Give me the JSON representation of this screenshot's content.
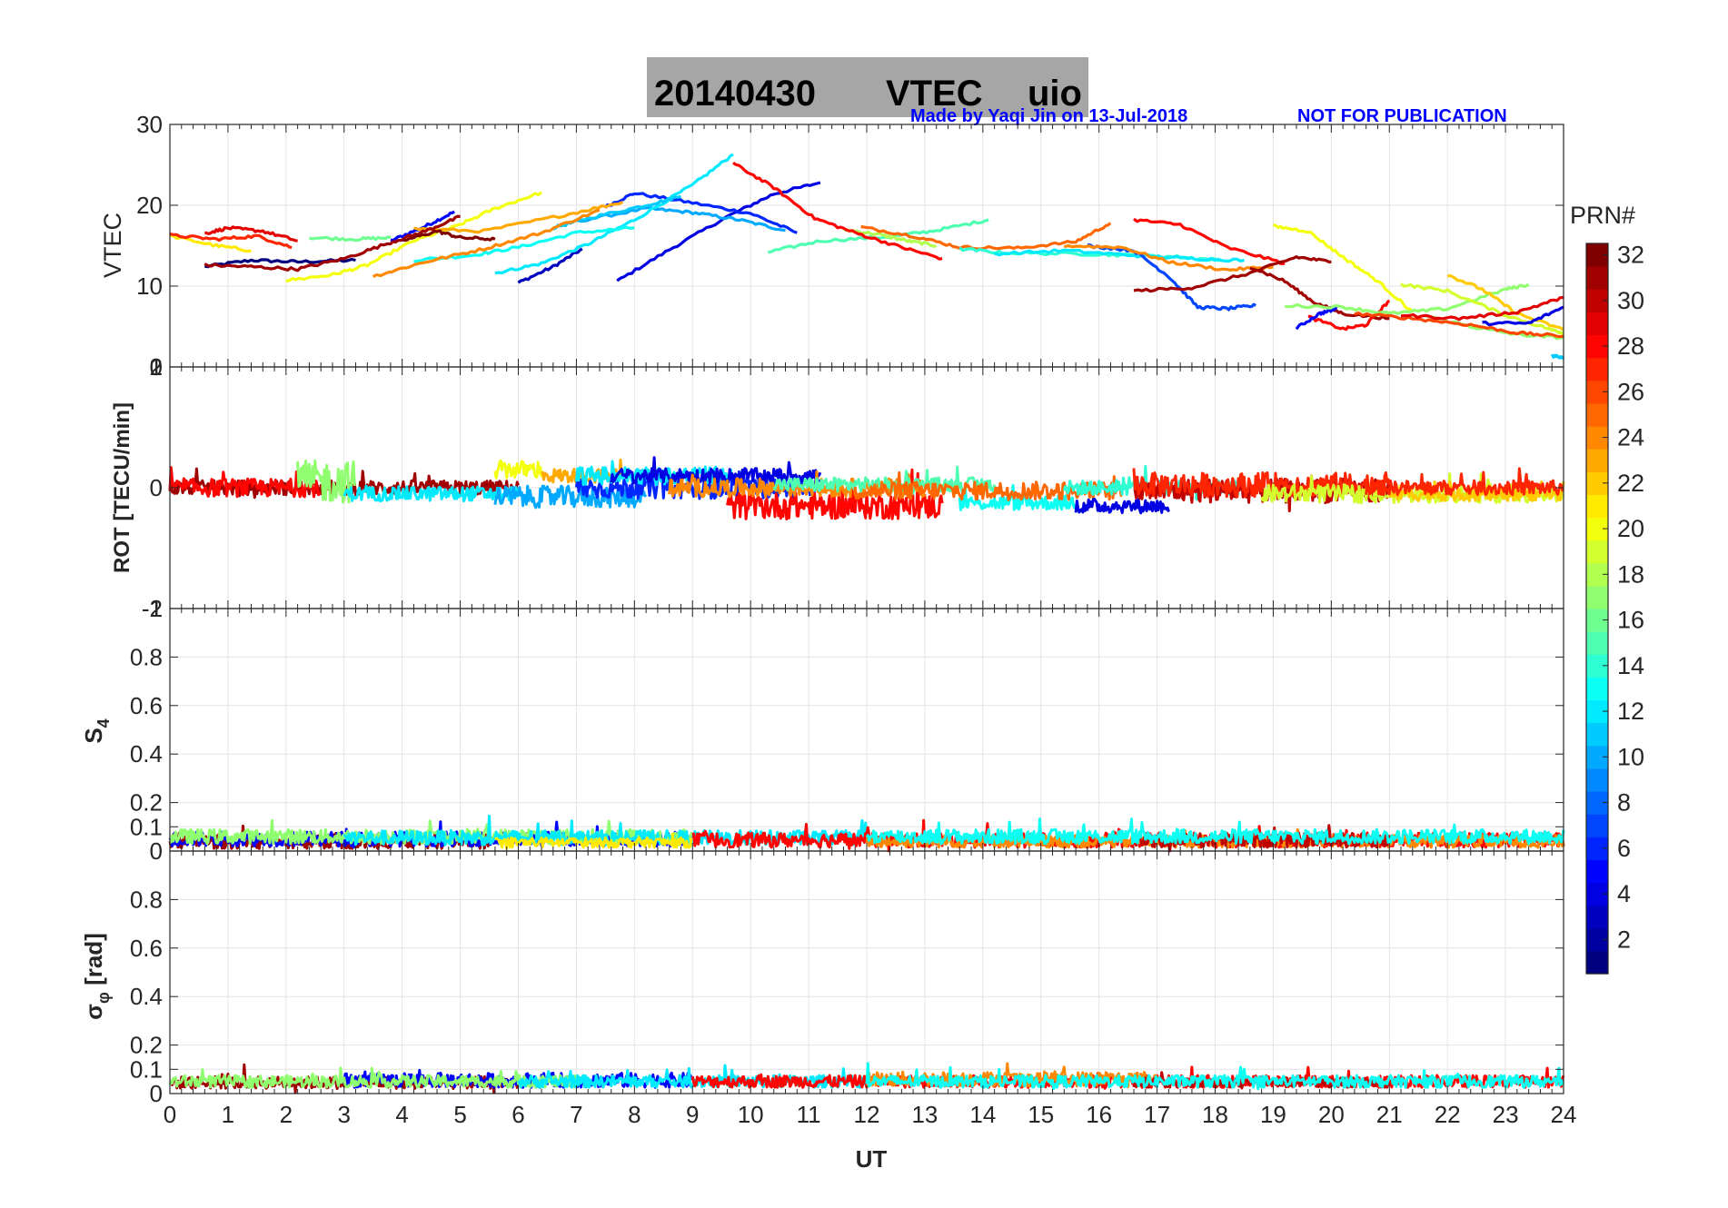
{
  "title": {
    "date": "20140430",
    "main": "VTEC",
    "station": "uio",
    "credit": "Made by Yaqi Jin on 13-Jul-2018",
    "notice": "NOT FOR PUBLICATION",
    "background_color": "#a6a6a6",
    "credit_color": "#0000ff"
  },
  "chart_data": [
    {
      "type": "line",
      "panel": "vtec",
      "ylabel": "VTEC",
      "xlabel": "",
      "xlim": [
        0,
        24
      ],
      "ylim": [
        0,
        30
      ],
      "yticks": [
        0,
        10,
        20,
        30
      ],
      "ytick_labels": [
        "0",
        "10",
        "20",
        "30"
      ],
      "grid": true,
      "series": [
        {
          "prn": 1,
          "x": [
            0.6,
            1.4,
            2.2,
            3.2
          ],
          "y": [
            12.4,
            13.2,
            13.0,
            13.2
          ]
        },
        {
          "prn": 5,
          "x": [
            3.8,
            4.4,
            4.9
          ],
          "y": [
            15.6,
            17.4,
            19.2
          ]
        },
        {
          "prn": 3,
          "x": [
            6.0,
            6.6,
            7.1
          ],
          "y": [
            10.4,
            12.4,
            14.6
          ]
        },
        {
          "prn": 4,
          "x": [
            7.7,
            8.6,
            9.6,
            10.4,
            11.2
          ],
          "y": [
            10.6,
            14.5,
            18.6,
            21.4,
            22.8
          ]
        },
        {
          "prn": 6,
          "x": [
            7.5,
            8.0,
            9.0,
            10.0,
            10.8
          ],
          "y": [
            19.8,
            21.5,
            20.3,
            19.0,
            16.6
          ]
        },
        {
          "prn": 10,
          "x": [
            7.0,
            8.2,
            9.0,
            9.8,
            10.6
          ],
          "y": [
            18.0,
            19.6,
            19.1,
            18.2,
            16.9
          ]
        },
        {
          "prn": 12,
          "x": [
            5.6,
            6.4,
            7.2,
            8.0,
            9.0,
            9.7
          ],
          "y": [
            11.6,
            12.8,
            15.2,
            18.2,
            22.5,
            26.3
          ]
        },
        {
          "prn": 11,
          "x": [
            6.6,
            7.2,
            8.2,
            8.8
          ],
          "y": [
            17.2,
            18.4,
            20.0,
            21.1
          ]
        },
        {
          "prn": 13,
          "x": [
            4.2,
            5.2,
            6.0,
            7.0,
            8.0
          ],
          "y": [
            13.2,
            13.8,
            14.8,
            16.6,
            17.2
          ]
        },
        {
          "prn": 15,
          "x": [
            10.3,
            11.2,
            12.4,
            13.2,
            14.1
          ],
          "y": [
            14.2,
            15.6,
            16.1,
            16.9,
            18.2
          ]
        },
        {
          "prn": 16,
          "x": [
            2.4,
            3.2,
            3.8
          ],
          "y": [
            16.0,
            15.8,
            16.0
          ]
        },
        {
          "prn": 18,
          "x": [
            11.6,
            12.2,
            12.7,
            13.2
          ],
          "y": [
            17.0,
            16.4,
            15.6,
            15.0
          ]
        },
        {
          "prn": 20,
          "x": [
            2.0,
            2.8,
            3.4,
            4.2,
            4.9,
            5.6,
            6.4
          ],
          "y": [
            10.7,
            11.4,
            12.6,
            15.6,
            17.3,
            19.6,
            21.6
          ]
        },
        {
          "prn": 21,
          "x": [
            0.0,
            0.8,
            1.4
          ],
          "y": [
            16.2,
            15.0,
            14.4
          ]
        },
        {
          "prn": 23,
          "x": [
            4.2,
            5.4,
            6.8,
            7.8
          ],
          "y": [
            17.1,
            16.8,
            18.8,
            20.4
          ]
        },
        {
          "prn": 24,
          "x": [
            3.5,
            4.4,
            5.4,
            6.4,
            7.4
          ],
          "y": [
            11.2,
            13.0,
            14.6,
            16.6,
            19.4
          ]
        },
        {
          "prn": 25,
          "x": [
            11.9,
            12.8,
            13.6,
            14.6,
            15.6,
            16.2
          ],
          "y": [
            17.3,
            16.2,
            14.8,
            14.7,
            15.5,
            17.8
          ]
        },
        {
          "prn": 27,
          "x": [
            0.0,
            0.8,
            1.5,
            2.1
          ],
          "y": [
            16.3,
            15.8,
            16.2,
            14.8
          ]
        },
        {
          "prn": 29,
          "x": [
            0.6,
            1.0,
            1.6,
            2.2
          ],
          "y": [
            16.5,
            17.2,
            16.8,
            15.6
          ]
        },
        {
          "prn": 28,
          "x": [
            9.7,
            10.4,
            11.1,
            11.8,
            12.6,
            13.3
          ],
          "y": [
            25.2,
            22.2,
            18.4,
            16.6,
            14.8,
            13.4
          ]
        },
        {
          "prn": 31,
          "x": [
            0.6,
            1.4,
            2.2,
            3.0,
            3.8,
            4.4,
            5.0
          ],
          "y": [
            12.6,
            12.4,
            12.1,
            13.4,
            15.4,
            16.8,
            18.6
          ]
        },
        {
          "prn": 32,
          "x": [
            4.0,
            4.6,
            5.0,
            5.6
          ],
          "y": [
            15.6,
            16.8,
            16.0,
            15.8
          ]
        },
        {
          "prn": 14,
          "x": [
            13.6,
            14.4,
            15.6,
            16.6,
            17.4,
            18.1
          ],
          "y": [
            14.6,
            14.1,
            14.0,
            13.8,
            13.6,
            13.2
          ]
        },
        {
          "prn": 12,
          "x": [
            14.2,
            15.4,
            16.6,
            17.6,
            18.5
          ],
          "y": [
            14.0,
            14.4,
            13.8,
            13.4,
            13.2
          ]
        },
        {
          "prn": 7,
          "x": [
            15.8,
            16.6,
            17.2,
            17.7,
            18.2,
            18.7
          ],
          "y": [
            15.0,
            14.4,
            11.2,
            7.4,
            7.2,
            7.6
          ]
        },
        {
          "prn": 24,
          "x": [
            15.4,
            16.4,
            17.2,
            18.2,
            19.0
          ],
          "y": [
            15.0,
            14.8,
            13.0,
            12.0,
            12.4
          ]
        },
        {
          "prn": 28,
          "x": [
            16.6,
            17.4,
            18.2,
            19.2
          ],
          "y": [
            18.2,
            17.6,
            14.8,
            12.8
          ]
        },
        {
          "prn": 31,
          "x": [
            16.6,
            17.6,
            18.6,
            19.4,
            20.0
          ],
          "y": [
            9.4,
            9.8,
            11.6,
            13.6,
            13.0
          ]
        },
        {
          "prn": 31,
          "x": [
            18.6,
            19.2,
            19.7,
            20.2,
            21.0
          ],
          "y": [
            12.4,
            10.6,
            8.0,
            6.6,
            6.0
          ]
        },
        {
          "prn": 20,
          "x": [
            19.0,
            19.6,
            20.2,
            20.8,
            21.4
          ],
          "y": [
            17.4,
            16.8,
            13.6,
            10.6,
            6.8
          ]
        },
        {
          "prn": 28,
          "x": [
            19.6,
            20.2,
            20.6,
            21.0
          ],
          "y": [
            6.2,
            4.7,
            5.2,
            8.2
          ]
        },
        {
          "prn": 5,
          "x": [
            19.4,
            19.8,
            20.1
          ],
          "y": [
            4.8,
            6.6,
            7.2
          ]
        },
        {
          "prn": 17,
          "x": [
            19.2,
            20.2,
            21.0,
            22.0,
            23.0,
            23.4
          ],
          "y": [
            7.6,
            7.4,
            6.6,
            7.2,
            9.6,
            10.2
          ]
        },
        {
          "prn": 19,
          "x": [
            21.2,
            22.0,
            23.0,
            23.8,
            24.0
          ],
          "y": [
            10.2,
            9.4,
            6.4,
            4.6,
            4.2
          ]
        },
        {
          "prn": 22,
          "x": [
            22.0,
            22.6,
            23.2,
            24.0
          ],
          "y": [
            11.4,
            9.6,
            6.6,
            4.6
          ]
        },
        {
          "prn": 17,
          "x": [
            21.6,
            22.4,
            23.2,
            24.0
          ],
          "y": [
            6.4,
            5.0,
            4.0,
            3.6
          ]
        },
        {
          "prn": 26,
          "x": [
            20.4,
            21.4,
            22.4,
            23.2,
            24.0
          ],
          "y": [
            6.6,
            6.0,
            5.2,
            4.2,
            3.8
          ]
        },
        {
          "prn": 29,
          "x": [
            21.2,
            22.2,
            23.2,
            24.0
          ],
          "y": [
            6.4,
            6.0,
            6.8,
            8.6
          ]
        },
        {
          "prn": 4,
          "x": [
            22.6,
            23.4,
            24.0
          ],
          "y": [
            5.4,
            5.4,
            7.4
          ]
        },
        {
          "prn": 11,
          "x": [
            23.8,
            24.0
          ],
          "y": [
            1.4,
            1.2
          ]
        }
      ]
    },
    {
      "type": "line",
      "panel": "rot",
      "ylabel": "ROT [TECU/min]",
      "xlabel": "",
      "xlim": [
        0,
        24
      ],
      "ylim": [
        -2,
        2
      ],
      "yticks": [
        -2,
        0,
        2
      ],
      "ytick_labels": [
        "-2",
        "0",
        "2"
      ],
      "yticks_overlap": [
        -1,
        1
      ],
      "ytick_labels_overlap": [
        "-1",
        "1"
      ],
      "grid": true,
      "series": [
        {
          "prn": 31,
          "x": [
            0.0,
            6.0
          ],
          "level": 0.0,
          "spread": 0.12
        },
        {
          "prn": 28,
          "x": [
            0.0,
            2.6
          ],
          "level": 0.0,
          "spread": 0.15
        },
        {
          "prn": 17,
          "x": [
            2.2,
            3.2
          ],
          "level": 0.1,
          "spread": 0.35
        },
        {
          "prn": 12,
          "x": [
            3.0,
            6.0
          ],
          "level": -0.1,
          "spread": 0.12
        },
        {
          "prn": 20,
          "x": [
            5.6,
            6.4
          ],
          "level": 0.3,
          "spread": 0.15
        },
        {
          "prn": 10,
          "x": [
            5.6,
            8.2
          ],
          "level": -0.15,
          "spread": 0.18
        },
        {
          "prn": 23,
          "x": [
            6.4,
            7.8
          ],
          "level": 0.2,
          "spread": 0.12
        },
        {
          "prn": 6,
          "x": [
            7.0,
            11.2
          ],
          "level": 0.0,
          "spread": 0.18
        },
        {
          "prn": 12,
          "x": [
            7.0,
            9.7
          ],
          "level": 0.2,
          "spread": 0.15
        },
        {
          "prn": 4,
          "x": [
            7.6,
            11.2
          ],
          "level": 0.2,
          "spread": 0.12
        },
        {
          "prn": 28,
          "x": [
            9.6,
            13.3
          ],
          "level": -0.3,
          "spread": 0.22
        },
        {
          "prn": 24,
          "x": [
            8.6,
            13.0
          ],
          "level": 0.0,
          "spread": 0.15
        },
        {
          "prn": 15,
          "x": [
            10.4,
            14.2
          ],
          "level": 0.05,
          "spread": 0.12
        },
        {
          "prn": 13,
          "x": [
            13.6,
            15.6
          ],
          "level": -0.25,
          "spread": 0.12
        },
        {
          "prn": 25,
          "x": [
            11.8,
            16.4
          ],
          "level": -0.05,
          "spread": 0.15
        },
        {
          "prn": 4,
          "x": [
            15.6,
            17.2
          ],
          "level": -0.3,
          "spread": 0.12
        },
        {
          "prn": 14,
          "x": [
            15.4,
            18.4
          ],
          "level": 0.0,
          "spread": 0.12
        },
        {
          "prn": 30,
          "x": [
            16.6,
            21.0
          ],
          "level": -0.05,
          "spread": 0.2
        },
        {
          "prn": 27,
          "x": [
            16.6,
            21.0
          ],
          "level": 0.05,
          "spread": 0.2
        },
        {
          "prn": 19,
          "x": [
            18.8,
            24.0
          ],
          "level": -0.1,
          "spread": 0.15
        },
        {
          "prn": 22,
          "x": [
            21.0,
            24.0
          ],
          "level": -0.1,
          "spread": 0.12
        },
        {
          "prn": 27,
          "x": [
            20.6,
            24.0
          ],
          "level": 0.0,
          "spread": 0.12
        }
      ]
    },
    {
      "type": "line",
      "panel": "s4",
      "ylabel": "S4",
      "xlabel": "",
      "xlim": [
        0,
        24
      ],
      "ylim": [
        0,
        1
      ],
      "yticks": [
        0,
        0.1,
        0.2,
        0.4,
        0.6,
        0.8
      ],
      "ytick_labels": [
        "0",
        "0.1",
        "0.2",
        "0.4",
        "0.6",
        "0.8"
      ],
      "ytick_labels_overlap": [
        "1"
      ],
      "grid": true,
      "series": [
        {
          "prn": 31,
          "x": [
            0.0,
            5.6
          ],
          "level": 0.04,
          "spread": 0.03
        },
        {
          "prn": 5,
          "x": [
            0.0,
            9.0
          ],
          "level": 0.05,
          "spread": 0.03
        },
        {
          "prn": 17,
          "x": [
            0.0,
            9.0
          ],
          "level": 0.06,
          "spread": 0.03
        },
        {
          "prn": 12,
          "x": [
            3.0,
            12.0
          ],
          "level": 0.055,
          "spread": 0.03
        },
        {
          "prn": 21,
          "x": [
            5.6,
            9.0
          ],
          "level": 0.035,
          "spread": 0.02
        },
        {
          "prn": 28,
          "x": [
            9.0,
            24.0
          ],
          "level": 0.045,
          "spread": 0.03
        },
        {
          "prn": 24,
          "x": [
            12.0,
            24.0
          ],
          "level": 0.04,
          "spread": 0.025
        },
        {
          "prn": 30,
          "x": [
            16.6,
            21.0
          ],
          "level": 0.045,
          "spread": 0.03
        },
        {
          "prn": 13,
          "x": [
            12.0,
            24.0
          ],
          "level": 0.06,
          "spread": 0.03
        }
      ]
    },
    {
      "type": "line",
      "panel": "sigma_phi",
      "ylabel": "σφ [rad]",
      "xlabel": "UT",
      "xlim": [
        0,
        24
      ],
      "ylim": [
        0,
        1
      ],
      "xticks": [
        0,
        1,
        2,
        3,
        4,
        5,
        6,
        7,
        8,
        9,
        10,
        11,
        12,
        13,
        14,
        15,
        16,
        17,
        18,
        19,
        20,
        21,
        22,
        23,
        24
      ],
      "xtick_labels": [
        "0",
        "1",
        "2",
        "3",
        "4",
        "5",
        "6",
        "7",
        "8",
        "9",
        "10",
        "11",
        "12",
        "13",
        "14",
        "15",
        "16",
        "17",
        "18",
        "19",
        "20",
        "21",
        "22",
        "23",
        "24"
      ],
      "yticks": [
        0,
        0.1,
        0.2,
        0.4,
        0.6,
        0.8
      ],
      "ytick_labels": [
        "0",
        "0.1",
        "0.2",
        "0.4",
        "0.6",
        "0.8"
      ],
      "grid": true,
      "series": [
        {
          "prn": 31,
          "x": [
            0.0,
            6.0
          ],
          "level": 0.045,
          "spread": 0.025
        },
        {
          "prn": 5,
          "x": [
            3.0,
            9.0
          ],
          "level": 0.055,
          "spread": 0.03
        },
        {
          "prn": 17,
          "x": [
            0.0,
            7.0
          ],
          "level": 0.05,
          "spread": 0.025
        },
        {
          "prn": 12,
          "x": [
            6.0,
            12.0
          ],
          "level": 0.05,
          "spread": 0.025
        },
        {
          "prn": 28,
          "x": [
            9.0,
            24.0
          ],
          "level": 0.05,
          "spread": 0.025
        },
        {
          "prn": 24,
          "x": [
            12.0,
            17.0
          ],
          "level": 0.06,
          "spread": 0.03
        },
        {
          "prn": 30,
          "x": [
            16.6,
            21.0
          ],
          "level": 0.045,
          "spread": 0.02
        },
        {
          "prn": 13,
          "x": [
            12.0,
            24.0
          ],
          "level": 0.05,
          "spread": 0.025
        }
      ]
    }
  ],
  "colorbar": {
    "label": "PRN#",
    "range": [
      1,
      32
    ],
    "ticks": [
      2,
      4,
      6,
      8,
      10,
      12,
      14,
      16,
      18,
      20,
      22,
      24,
      26,
      28,
      30,
      32
    ],
    "tick_labels": [
      "2",
      "4",
      "6",
      "8",
      "10",
      "12",
      "14",
      "16",
      "18",
      "20",
      "22",
      "24",
      "26",
      "28",
      "30",
      "32"
    ],
    "colormap": "jet"
  }
}
